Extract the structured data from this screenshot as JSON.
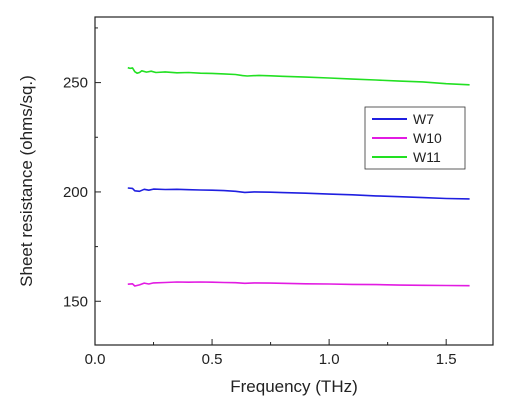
{
  "chart_data": {
    "type": "line",
    "xlabel": "Frequency (THz)",
    "ylabel": "Sheet resistance (ohms/sq.)",
    "xlim": [
      0.0,
      1.7
    ],
    "ylim": [
      130,
      280
    ],
    "xticks": [
      0.0,
      0.5,
      1.0,
      1.5
    ],
    "xtick_labels": [
      "0.0",
      "0.5",
      "1.0",
      "1.5"
    ],
    "yticks": [
      150,
      200,
      250
    ],
    "ytick_labels": [
      "150",
      "200",
      "250"
    ],
    "grid": false,
    "legend_position": "right",
    "series": [
      {
        "name": "W7",
        "color": "#1f1fe0",
        "x": [
          0.14,
          0.16,
          0.17,
          0.19,
          0.21,
          0.23,
          0.25,
          0.3,
          0.35,
          0.4,
          0.45,
          0.5,
          0.55,
          0.6,
          0.64,
          0.68,
          0.75,
          0.8,
          0.9,
          1.0,
          1.1,
          1.2,
          1.3,
          1.4,
          1.5,
          1.6
        ],
        "y": [
          201.8,
          201.6,
          200.5,
          200.3,
          201.2,
          200.8,
          201.3,
          201.1,
          201.2,
          201.0,
          200.9,
          200.8,
          200.6,
          200.3,
          199.8,
          200.0,
          199.9,
          199.7,
          199.4,
          199.0,
          198.7,
          198.2,
          197.8,
          197.4,
          197.0,
          196.8
        ]
      },
      {
        "name": "W10",
        "color": "#e21be2",
        "x": [
          0.14,
          0.16,
          0.17,
          0.19,
          0.21,
          0.23,
          0.25,
          0.3,
          0.35,
          0.4,
          0.45,
          0.5,
          0.55,
          0.6,
          0.64,
          0.68,
          0.75,
          0.8,
          0.9,
          1.0,
          1.1,
          1.2,
          1.3,
          1.4,
          1.5,
          1.6
        ],
        "y": [
          157.8,
          158.0,
          157.0,
          157.5,
          158.3,
          157.9,
          158.4,
          158.6,
          158.8,
          158.7,
          158.8,
          158.7,
          158.6,
          158.5,
          158.2,
          158.4,
          158.3,
          158.2,
          158.0,
          157.9,
          157.7,
          157.6,
          157.4,
          157.3,
          157.2,
          157.1
        ]
      },
      {
        "name": "W11",
        "color": "#22e022",
        "x": [
          0.14,
          0.15,
          0.16,
          0.17,
          0.18,
          0.19,
          0.2,
          0.22,
          0.24,
          0.26,
          0.3,
          0.35,
          0.4,
          0.45,
          0.5,
          0.55,
          0.6,
          0.63,
          0.65,
          0.7,
          0.75,
          0.8,
          0.9,
          1.0,
          1.1,
          1.2,
          1.3,
          1.4,
          1.5,
          1.6
        ],
        "y": [
          256.8,
          256.5,
          256.7,
          255.0,
          254.3,
          254.6,
          255.4,
          254.8,
          255.2,
          254.6,
          254.9,
          254.5,
          254.6,
          254.3,
          254.2,
          254.0,
          253.7,
          253.2,
          253.0,
          253.3,
          253.1,
          252.9,
          252.5,
          252.1,
          251.6,
          251.2,
          250.7,
          250.3,
          249.5,
          249.0
        ]
      }
    ]
  }
}
